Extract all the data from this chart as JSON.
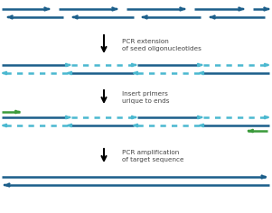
{
  "bg_color": "#ffffff",
  "teal_dark": "#1b5e8a",
  "teal_dot": "#4ab8d0",
  "green": "#3a9a3a",
  "text_color": "#444444",
  "label1": "PCR extension\nof seed oligonucleotides",
  "label2": "Insert primers\nurique to ends",
  "label3": "PCR amplification\nof target sequence",
  "fig_width": 3.01,
  "fig_height": 2.36,
  "dpi": 100
}
